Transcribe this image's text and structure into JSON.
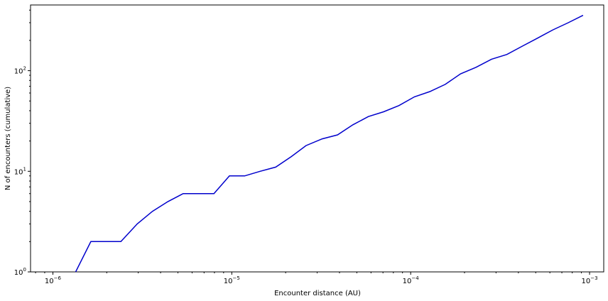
{
  "chart_data": {
    "type": "line",
    "title": "",
    "xlabel": "Encounter distance (AU)",
    "ylabel": "N of encounters (cumulative)",
    "xscale": "log",
    "yscale": "log",
    "xlim": [
      7.5e-07,
      0.0012
    ],
    "ylim": [
      1,
      450
    ],
    "grid": false,
    "legend": "none",
    "x_ticks": [
      {
        "value": 1e-06,
        "base": "10",
        "exp": "−6"
      },
      {
        "value": 1e-05,
        "base": "10",
        "exp": "−5"
      },
      {
        "value": 0.0001,
        "base": "10",
        "exp": "−4"
      },
      {
        "value": 0.001,
        "base": "10",
        "exp": "−3"
      }
    ],
    "y_ticks": [
      {
        "value": 1,
        "base": "10",
        "exp": "0"
      },
      {
        "value": 10,
        "base": "10",
        "exp": "1"
      },
      {
        "value": 100,
        "base": "10",
        "exp": "2"
      }
    ],
    "series": [
      {
        "color": "#0000cc",
        "x": [
          1.34e-06,
          1.63e-06,
          2.4e-06,
          2.96e-06,
          3.6e-06,
          4.4e-06,
          5.35e-06,
          6.5e-06,
          7.95e-06,
          9.7e-06,
          1.18e-05,
          1.44e-05,
          1.76e-05,
          2.15e-05,
          2.6e-05,
          3.2e-05,
          3.9e-05,
          4.75e-05,
          5.8e-05,
          7.05e-05,
          8.6e-05,
          0.000105,
          0.000128,
          0.000156,
          0.00019,
          0.000232,
          0.000283,
          0.000345,
          0.00042,
          0.00051,
          0.000625,
          0.00076,
          0.00092
        ],
        "y": [
          1,
          2,
          2,
          3,
          4,
          5,
          6,
          6,
          6,
          9,
          9,
          10,
          11,
          14,
          18,
          21,
          23,
          29,
          35,
          39,
          45,
          55,
          62,
          73,
          93,
          108,
          130,
          145,
          175,
          210,
          255,
          300,
          355
        ]
      }
    ]
  }
}
